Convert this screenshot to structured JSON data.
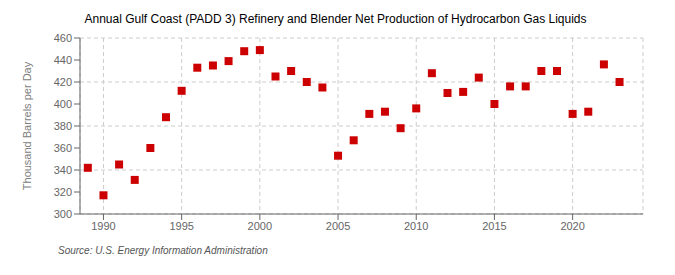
{
  "chart_data": {
    "type": "scatter",
    "title": "Annual Gulf Coast (PADD 3) Refinery and Blender Net Production of Hydrocarbon Gas Liquids",
    "ylabel": "Thousand Barrels per Day",
    "annotations": [
      "Source: U.S. Energy Information Administration"
    ],
    "color": "#cc0000",
    "marker": "square",
    "grid": true,
    "xlim": [
      1988.5,
      2024.5
    ],
    "ylim": [
      300,
      460
    ],
    "xticks": [
      1990,
      1995,
      2000,
      2005,
      2010,
      2015,
      2020
    ],
    "yticks": [
      300,
      320,
      340,
      360,
      380,
      400,
      420,
      440,
      460
    ],
    "x": [
      1989,
      1990,
      1991,
      1992,
      1993,
      1994,
      1995,
      1996,
      1997,
      1998,
      1999,
      2000,
      2001,
      2002,
      2003,
      2004,
      2005,
      2006,
      2007,
      2008,
      2009,
      2010,
      2011,
      2012,
      2013,
      2014,
      2015,
      2016,
      2017,
      2018,
      2019,
      2020,
      2021,
      2022,
      2023
    ],
    "values": [
      342,
      317,
      345,
      331,
      360,
      388,
      412,
      433,
      435,
      439,
      448,
      449,
      425,
      430,
      420,
      415,
      353,
      367,
      391,
      393,
      378,
      396,
      428,
      410,
      411,
      424,
      400,
      416,
      416,
      430,
      430,
      391,
      393,
      436,
      420
    ]
  }
}
